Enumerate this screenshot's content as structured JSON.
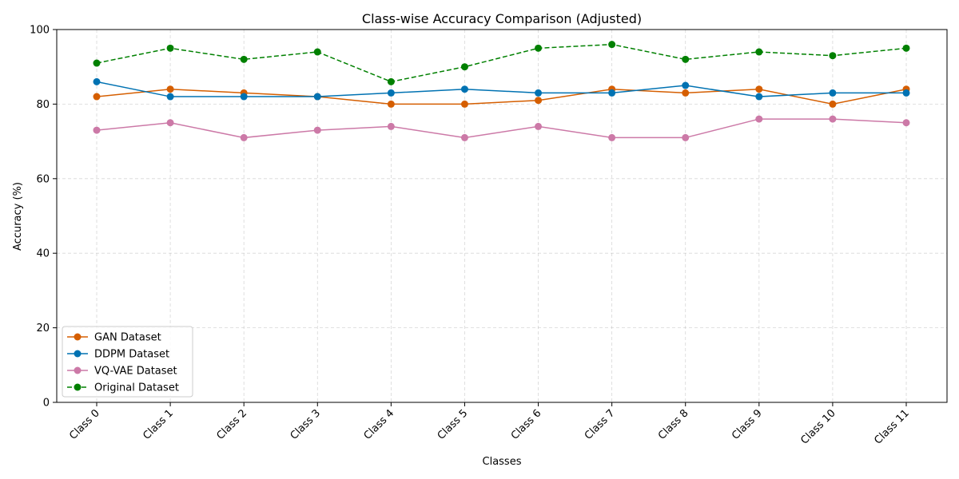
{
  "chart_data": {
    "type": "line",
    "title": "Class-wise Accuracy Comparison (Adjusted)",
    "xlabel": "Classes",
    "ylabel": "Accuracy (%)",
    "ylim": [
      0,
      100
    ],
    "yticks": [
      0,
      20,
      40,
      60,
      80,
      100
    ],
    "grid": true,
    "legend_position": "lower-left",
    "categories": [
      "Class 0",
      "Class 1",
      "Class 2",
      "Class 3",
      "Class 4",
      "Class 5",
      "Class 6",
      "Class 7",
      "Class 8",
      "Class 9",
      "Class 10",
      "Class 11"
    ],
    "series": [
      {
        "name": "GAN Dataset",
        "color": "#d55e00",
        "dashed": false,
        "values": [
          82,
          84,
          83,
          82,
          80,
          80,
          81,
          84,
          83,
          84,
          80,
          84
        ]
      },
      {
        "name": "DDPM Dataset",
        "color": "#0072b2",
        "dashed": false,
        "values": [
          86,
          82,
          82,
          82,
          83,
          84,
          83,
          83,
          85,
          82,
          83,
          83
        ]
      },
      {
        "name": "VQ-VAE Dataset",
        "color": "#cc79a7",
        "dashed": false,
        "values": [
          73,
          75,
          71,
          73,
          74,
          71,
          74,
          71,
          71,
          76,
          76,
          75
        ]
      },
      {
        "name": "Original Dataset",
        "color": "#008000",
        "dashed": true,
        "values": [
          91,
          95,
          92,
          94,
          86,
          90,
          95,
          96,
          92,
          94,
          93,
          95
        ]
      }
    ]
  }
}
